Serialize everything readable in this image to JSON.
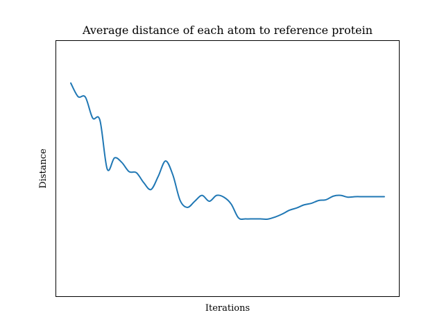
{
  "chart_data": {
    "type": "line",
    "title": "Average distance of each atom to reference protein",
    "xlabel": "Iterations",
    "ylabel": "Distance",
    "grid": false,
    "legend": "none",
    "xticks": [],
    "yticks": [],
    "xlim": [
      -2.0,
      45.0
    ],
    "ylim": [
      0.0,
      1.0
    ],
    "series": [
      {
        "color": "#1f77b4",
        "x": [
          0,
          1,
          2,
          3,
          4,
          5,
          6,
          7,
          8,
          9,
          10,
          11,
          12,
          13,
          14,
          15,
          16,
          17,
          18,
          19,
          20,
          21,
          22,
          23,
          24,
          25,
          26,
          27,
          28,
          29,
          30,
          31,
          32,
          33,
          34,
          35,
          36,
          37,
          38,
          39,
          40,
          41,
          42,
          43
        ],
        "y": [
          0.835,
          0.782,
          0.78,
          0.698,
          0.689,
          0.498,
          0.542,
          0.524,
          0.488,
          0.484,
          0.445,
          0.418,
          0.47,
          0.53,
          0.475,
          0.375,
          0.348,
          0.372,
          0.395,
          0.372,
          0.395,
          0.388,
          0.361,
          0.307,
          0.303,
          0.303,
          0.303,
          0.302,
          0.31,
          0.322,
          0.337,
          0.346,
          0.358,
          0.364,
          0.375,
          0.378,
          0.392,
          0.395,
          0.388,
          0.39,
          0.39,
          0.39,
          0.39,
          0.39
        ]
      }
    ]
  }
}
